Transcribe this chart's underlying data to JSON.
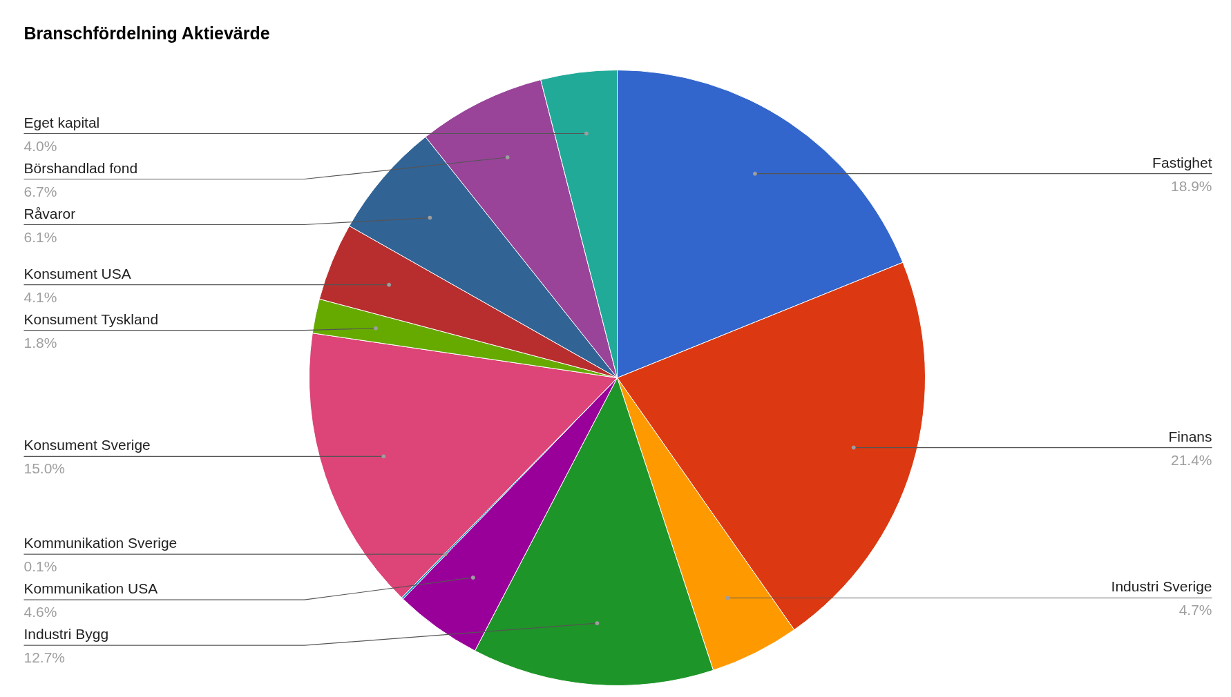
{
  "chart_data": {
    "type": "pie",
    "title": "Branschfördelning Aktievärde",
    "categories": [
      "Fastighet",
      "Finans",
      "Industri Sverige",
      "Industri Bygg",
      "Kommunikation USA",
      "Kommunikation Sverige",
      "Konsument Sverige",
      "Konsument Tyskland",
      "Konsument USA",
      "Råvaror",
      "Börshandlad fond",
      "Eget kapital"
    ],
    "values": [
      18.9,
      21.4,
      4.7,
      12.7,
      4.6,
      0.1,
      15.0,
      1.8,
      4.1,
      6.1,
      6.7,
      4.0
    ],
    "value_labels": [
      "18.9%",
      "21.4%",
      "4.7%",
      "12.7%",
      "4.6%",
      "0.1%",
      "15.0%",
      "1.8%",
      "4.1%",
      "6.1%",
      "6.7%",
      "4.0%"
    ],
    "colors": [
      "#3366cc",
      "#dc3912",
      "#ff9900",
      "#1e9528",
      "#990099",
      "#0099c6",
      "#dd4477",
      "#66aa00",
      "#b82e2e",
      "#316395",
      "#994499",
      "#22aa99"
    ]
  }
}
